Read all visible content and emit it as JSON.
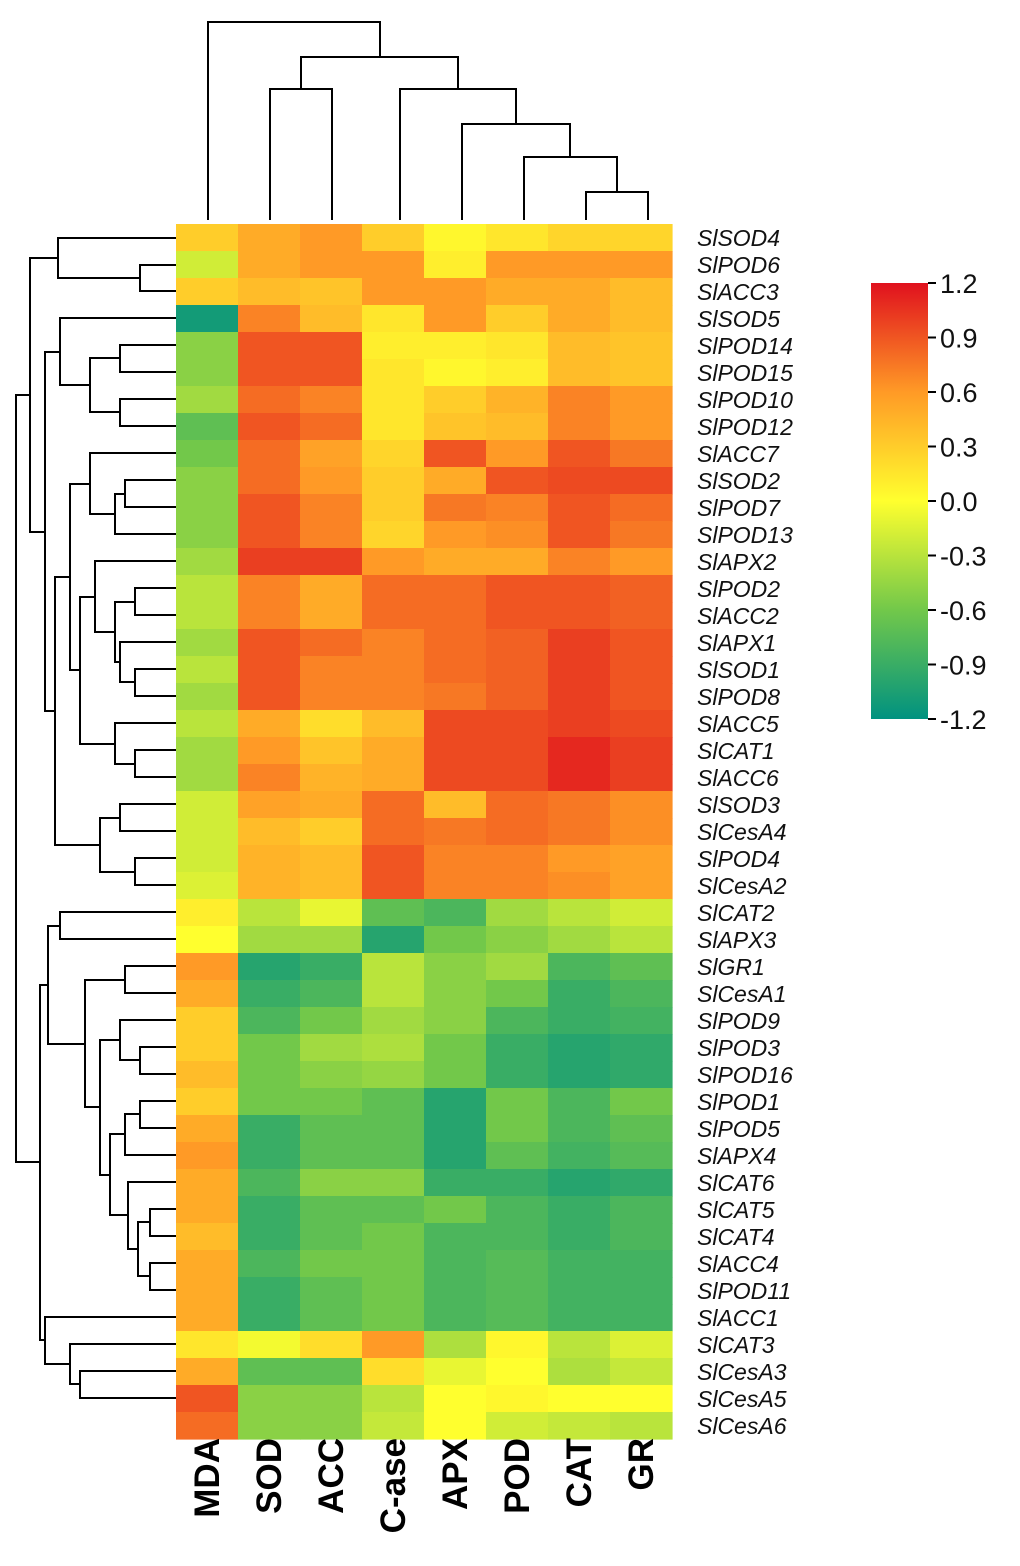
{
  "chart_data": {
    "type": "heatmap",
    "columns": [
      "MDA",
      "SOD",
      "ACC",
      "C-ase",
      "APX",
      "POD",
      "CAT",
      "GR"
    ],
    "rows": [
      "SlSOD4",
      "SlPOD6",
      "SlACC3",
      "SlSOD5",
      "SlPOD14",
      "SlPOD15",
      "SlPOD10",
      "SlPOD12",
      "SlACC7",
      "SlSOD2",
      "SlPOD7",
      "SlPOD13",
      "SlAPX2",
      "SlPOD2",
      "SlACC2",
      "SlAPX1",
      "SlSOD1",
      "SlPOD8",
      "SlACC5",
      "SlCAT1",
      "SlACC6",
      "SlSOD3",
      "SlCesA4",
      "SlPOD4",
      "SlCesA2",
      "SlCAT2",
      "SlAPX3",
      "SlGR1",
      "SlCesA1",
      "SlPOD9",
      "SlPOD3",
      "SlPOD16",
      "SlPOD1",
      "SlPOD5",
      "SlAPX4",
      "SlCAT6",
      "SlCAT5",
      "SlCAT4",
      "SlACC4",
      "SlPOD11",
      "SlACC1",
      "SlCAT3",
      "SlCesA3",
      "SlCesA5",
      "SlCesA6"
    ],
    "values": [
      [
        0.3,
        0.5,
        0.6,
        0.3,
        0.05,
        0.15,
        0.25,
        0.25
      ],
      [
        -0.2,
        0.5,
        0.6,
        0.6,
        0.1,
        0.6,
        0.6,
        0.6
      ],
      [
        0.3,
        0.4,
        0.35,
        0.6,
        0.6,
        0.5,
        0.5,
        0.4
      ],
      [
        -1.1,
        0.7,
        0.4,
        0.15,
        0.6,
        0.3,
        0.5,
        0.4
      ],
      [
        -0.5,
        0.9,
        0.9,
        0.1,
        0.1,
        0.15,
        0.4,
        0.35
      ],
      [
        -0.5,
        0.9,
        0.9,
        0.15,
        0.05,
        0.1,
        0.4,
        0.35
      ],
      [
        -0.4,
        0.8,
        0.7,
        0.15,
        0.3,
        0.45,
        0.7,
        0.6
      ],
      [
        -0.7,
        0.9,
        0.8,
        0.15,
        0.35,
        0.4,
        0.7,
        0.6
      ],
      [
        -0.6,
        0.8,
        0.55,
        0.25,
        0.9,
        0.6,
        0.9,
        0.75
      ],
      [
        -0.5,
        0.8,
        0.6,
        0.3,
        0.5,
        0.9,
        0.95,
        0.95
      ],
      [
        -0.5,
        0.9,
        0.7,
        0.3,
        0.75,
        0.7,
        0.9,
        0.8
      ],
      [
        -0.5,
        0.9,
        0.7,
        0.25,
        0.6,
        0.65,
        0.9,
        0.75
      ],
      [
        -0.4,
        1.0,
        1.0,
        0.6,
        0.5,
        0.5,
        0.7,
        0.6
      ],
      [
        -0.3,
        0.7,
        0.5,
        0.8,
        0.8,
        0.9,
        0.9,
        0.85
      ],
      [
        -0.3,
        0.7,
        0.5,
        0.8,
        0.8,
        0.9,
        0.9,
        0.85
      ],
      [
        -0.4,
        0.9,
        0.8,
        0.7,
        0.8,
        0.85,
        1.0,
        0.9
      ],
      [
        -0.3,
        0.9,
        0.7,
        0.7,
        0.8,
        0.85,
        1.0,
        0.9
      ],
      [
        -0.4,
        0.9,
        0.7,
        0.7,
        0.75,
        0.85,
        1.0,
        0.9
      ],
      [
        -0.3,
        0.5,
        0.2,
        0.4,
        0.95,
        0.95,
        1.0,
        0.95
      ],
      [
        -0.4,
        0.6,
        0.35,
        0.5,
        0.95,
        0.95,
        1.1,
        1.0
      ],
      [
        -0.4,
        0.7,
        0.45,
        0.5,
        0.95,
        0.95,
        1.1,
        1.0
      ],
      [
        -0.2,
        0.55,
        0.5,
        0.8,
        0.4,
        0.8,
        0.75,
        0.65
      ],
      [
        -0.2,
        0.4,
        0.3,
        0.8,
        0.75,
        0.8,
        0.75,
        0.65
      ],
      [
        -0.2,
        0.45,
        0.4,
        0.9,
        0.7,
        0.7,
        0.6,
        0.55
      ],
      [
        -0.15,
        0.45,
        0.4,
        0.9,
        0.7,
        0.7,
        0.65,
        0.55
      ],
      [
        0.1,
        -0.3,
        -0.1,
        -0.7,
        -0.8,
        -0.4,
        -0.3,
        -0.2
      ],
      [
        0.0,
        -0.4,
        -0.4,
        -1.0,
        -0.6,
        -0.5,
        -0.4,
        -0.3
      ],
      [
        0.6,
        -1.0,
        -0.9,
        -0.3,
        -0.5,
        -0.4,
        -0.8,
        -0.7
      ],
      [
        0.5,
        -0.9,
        -0.8,
        -0.3,
        -0.5,
        -0.6,
        -0.9,
        -0.8
      ],
      [
        0.3,
        -0.8,
        -0.6,
        -0.4,
        -0.5,
        -0.8,
        -0.9,
        -0.85
      ],
      [
        0.3,
        -0.6,
        -0.4,
        -0.35,
        -0.6,
        -0.9,
        -1.0,
        -0.95
      ],
      [
        0.4,
        -0.6,
        -0.5,
        -0.45,
        -0.6,
        -0.9,
        -1.0,
        -0.95
      ],
      [
        0.3,
        -0.6,
        -0.6,
        -0.7,
        -1.0,
        -0.6,
        -0.8,
        -0.6
      ],
      [
        0.5,
        -0.9,
        -0.7,
        -0.7,
        -1.0,
        -0.6,
        -0.8,
        -0.7
      ],
      [
        0.6,
        -0.9,
        -0.7,
        -0.7,
        -1.0,
        -0.7,
        -0.85,
        -0.75
      ],
      [
        0.5,
        -0.8,
        -0.5,
        -0.5,
        -0.9,
        -0.9,
        -1.0,
        -0.95
      ],
      [
        0.5,
        -0.9,
        -0.7,
        -0.7,
        -0.6,
        -0.8,
        -0.9,
        -0.8
      ],
      [
        0.4,
        -0.9,
        -0.7,
        -0.6,
        -0.8,
        -0.8,
        -0.9,
        -0.8
      ],
      [
        0.5,
        -0.8,
        -0.6,
        -0.6,
        -0.8,
        -0.75,
        -0.85,
        -0.85
      ],
      [
        0.5,
        -0.9,
        -0.7,
        -0.6,
        -0.8,
        -0.75,
        -0.85,
        -0.85
      ],
      [
        0.5,
        -0.9,
        -0.7,
        -0.6,
        -0.8,
        -0.75,
        -0.85,
        -0.85
      ],
      [
        0.15,
        -0.05,
        0.2,
        0.6,
        -0.35,
        0.05,
        -0.3,
        -0.15
      ],
      [
        0.5,
        -0.7,
        -0.7,
        0.2,
        -0.1,
        0.0,
        -0.35,
        -0.25
      ],
      [
        0.9,
        -0.5,
        -0.5,
        -0.3,
        0.0,
        0.05,
        0.0,
        0.0
      ],
      [
        0.8,
        -0.5,
        -0.5,
        -0.25,
        0.0,
        -0.2,
        -0.25,
        -0.3
      ]
    ],
    "colorbar": {
      "min": -1.2,
      "max": 1.2,
      "ticks": [
        "1.2",
        "0.9",
        "0.6",
        "0.3",
        "0.0",
        "-0.3",
        "-0.6",
        "-0.9",
        "-1.2"
      ],
      "colors": [
        "#009280",
        "#ffff2e",
        "#e0111e"
      ]
    },
    "title": "",
    "xlabel": "",
    "ylabel": ""
  }
}
